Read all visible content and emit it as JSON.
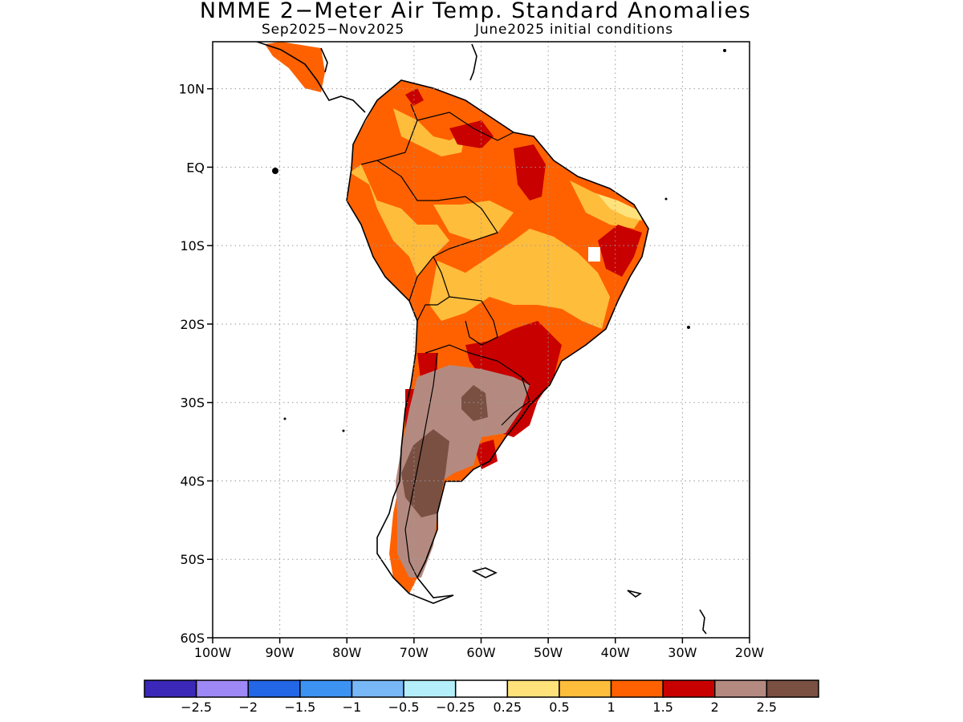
{
  "title": "NMME 2−Meter Air Temp. Standard Anomalies",
  "subtitle_period": "Sep2025−Nov2025",
  "subtitle_init": "June2025 initial conditions",
  "map": {
    "lat_ticks": [
      {
        "value": 10,
        "label": "10N"
      },
      {
        "value": 0,
        "label": "EQ"
      },
      {
        "value": -10,
        "label": "10S"
      },
      {
        "value": -20,
        "label": "20S"
      },
      {
        "value": -30,
        "label": "30S"
      },
      {
        "value": -40,
        "label": "40S"
      },
      {
        "value": -50,
        "label": "50S"
      },
      {
        "value": -60,
        "label": "60S"
      }
    ],
    "lon_ticks": [
      {
        "value": -100,
        "label": "100W"
      },
      {
        "value": -90,
        "label": "90W"
      },
      {
        "value": -80,
        "label": "80W"
      },
      {
        "value": -70,
        "label": "70W"
      },
      {
        "value": -60,
        "label": "60W"
      },
      {
        "value": -50,
        "label": "50W"
      },
      {
        "value": -40,
        "label": "40W"
      },
      {
        "value": -30,
        "label": "30W"
      },
      {
        "value": -20,
        "label": "20W"
      }
    ],
    "lon_range": [
      -100,
      -20
    ],
    "lat_range": [
      -60,
      16
    ],
    "grid": "dotted"
  },
  "colorbar": {
    "colors": [
      "#3b28b8",
      "#9e88f5",
      "#2366e6",
      "#3c93f2",
      "#78b8f7",
      "#b4eefa",
      "#ffffff",
      "#ffe27a",
      "#ffbd3c",
      "#ff6100",
      "#c80000",
      "#b48a80",
      "#7a5043"
    ],
    "labels": [
      "−2.5",
      "−2",
      "−1.5",
      "−1",
      "−0.5",
      "−0.25",
      "0.25",
      "0.5",
      "1",
      "1.5",
      "2",
      "2.5"
    ]
  }
}
